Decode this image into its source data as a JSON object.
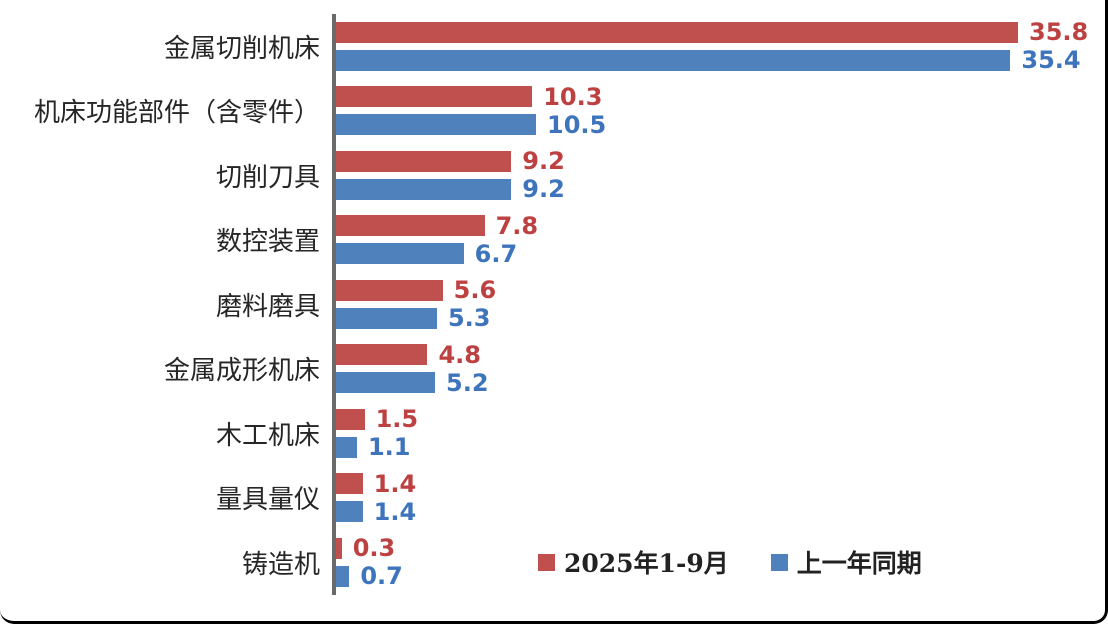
{
  "chart_data": {
    "type": "bar",
    "orientation": "horizontal",
    "title": "",
    "xlabel": "",
    "ylabel": "",
    "xlim": [
      0,
      37
    ],
    "grid": false,
    "axis_color": "#6a6a6a",
    "categories": [
      "金属切削机床",
      "机床功能部件（含零件）",
      "切削刀具",
      "数控装置",
      "磨料磨具",
      "金属成形机床",
      "木工机床",
      "量具量仪",
      "铸造机"
    ],
    "series": [
      {
        "name": "2025年1-9月",
        "color": "#C0504D",
        "label_color": "#BE4142",
        "values": [
          35.8,
          10.3,
          9.2,
          7.8,
          5.6,
          4.8,
          1.5,
          1.4,
          0.3
        ]
      },
      {
        "name": "上一年同期",
        "color": "#4F81BD",
        "label_color": "#3E74BC",
        "values": [
          35.4,
          10.5,
          9.2,
          6.7,
          5.3,
          5.2,
          1.1,
          1.4,
          0.7
        ]
      }
    ],
    "legend": {
      "position": "bottom-center",
      "entries": [
        "2025年1-9月",
        "上一年同期"
      ]
    }
  }
}
